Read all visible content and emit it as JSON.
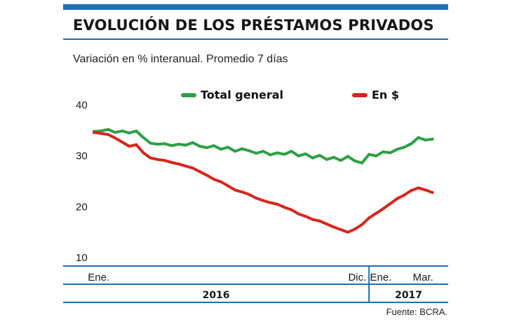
{
  "header": {
    "title": "EVOLUCIÓN DE LOS PRÉSTAMOS PRIVADOS",
    "subtitle": "Variación en % interanual. Promedio 7 días"
  },
  "colors": {
    "accent": "#1f6fb5",
    "total": "#2ea043",
    "pesos": "#d7261e"
  },
  "footer": {
    "source": "Fuente: BCRA."
  },
  "chart_data": {
    "type": "line",
    "y_ticks": [
      40,
      30,
      20,
      10
    ],
    "ylim": [
      10,
      40
    ],
    "xlim": [
      0,
      14.5
    ],
    "x_ticks": [
      {
        "label": "Ene.",
        "x": 0.2
      },
      {
        "label": "Dic.",
        "x": 11.2
      },
      {
        "label": "Ene.",
        "x": 12.2
      },
      {
        "label": "Mar.",
        "x": 14.0
      }
    ],
    "year_groups": [
      {
        "label": "2016",
        "from": 0,
        "to": 11.7
      },
      {
        "label": "2017",
        "from": 11.7,
        "to": 14.5
      }
    ],
    "legend": {
      "total": "Total general",
      "pesos": "En $"
    },
    "series": [
      {
        "name": "Total general",
        "key": "total",
        "x": [
          0,
          0.3,
          0.6,
          0.9,
          1.2,
          1.5,
          1.8,
          2.1,
          2.4,
          2.7,
          3.0,
          3.3,
          3.6,
          3.9,
          4.2,
          4.5,
          4.8,
          5.1,
          5.4,
          5.7,
          6.0,
          6.3,
          6.6,
          6.9,
          7.2,
          7.5,
          7.8,
          8.1,
          8.4,
          8.7,
          9.0,
          9.3,
          9.6,
          9.9,
          10.2,
          10.5,
          10.8,
          11.1,
          11.4,
          11.7,
          12.0,
          12.3,
          12.6,
          12.9,
          13.2,
          13.5,
          13.8,
          14.1,
          14.4
        ],
        "values": [
          34.8,
          34.9,
          35.2,
          34.6,
          34.9,
          34.5,
          34.9,
          33.6,
          32.5,
          32.3,
          32.4,
          32.0,
          32.3,
          32.1,
          32.6,
          31.9,
          31.6,
          32.0,
          31.3,
          31.7,
          30.9,
          31.4,
          31.0,
          30.5,
          30.9,
          30.2,
          30.6,
          30.3,
          30.9,
          30.0,
          30.4,
          29.6,
          30.1,
          29.3,
          29.7,
          29.1,
          29.9,
          29.0,
          28.6,
          30.3,
          30.0,
          30.8,
          30.6,
          31.3,
          31.7,
          32.4,
          33.6,
          33.1,
          33.3
        ]
      },
      {
        "name": "En $",
        "key": "pesos",
        "x": [
          0,
          0.3,
          0.6,
          0.9,
          1.2,
          1.5,
          1.8,
          2.1,
          2.4,
          2.7,
          3.0,
          3.3,
          3.6,
          3.9,
          4.2,
          4.5,
          4.8,
          5.1,
          5.4,
          5.7,
          6.0,
          6.3,
          6.6,
          6.9,
          7.2,
          7.5,
          7.8,
          8.1,
          8.4,
          8.7,
          9.0,
          9.3,
          9.6,
          9.9,
          10.2,
          10.5,
          10.8,
          11.1,
          11.4,
          11.7,
          12.0,
          12.3,
          12.6,
          12.9,
          13.2,
          13.5,
          13.8,
          14.1,
          14.4
        ],
        "values": [
          34.6,
          34.4,
          34.2,
          33.5,
          32.7,
          31.9,
          32.2,
          30.6,
          29.6,
          29.3,
          29.1,
          28.7,
          28.4,
          28.0,
          27.6,
          26.9,
          26.2,
          25.4,
          24.9,
          24.1,
          23.3,
          22.9,
          22.4,
          21.7,
          21.2,
          20.8,
          20.5,
          19.9,
          19.4,
          18.6,
          18.1,
          17.5,
          17.2,
          16.6,
          16.0,
          15.5,
          15.0,
          15.6,
          16.5,
          17.8,
          18.7,
          19.6,
          20.6,
          21.6,
          22.3,
          23.2,
          23.7,
          23.3,
          22.8
        ]
      }
    ],
    "grid": false,
    "legend_position": "top"
  }
}
